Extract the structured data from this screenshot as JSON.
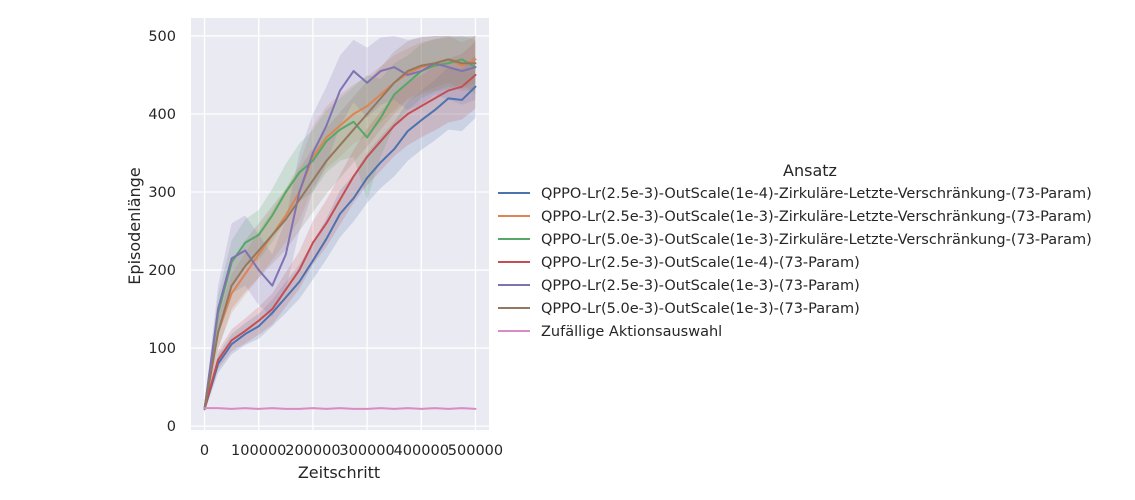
{
  "chart_data": {
    "type": "line",
    "title": "",
    "xlabel": "Zeitschritt",
    "ylabel": "Episodenlänge",
    "xlim": [
      -25000,
      525000
    ],
    "ylim": [
      -5,
      523
    ],
    "xticks": [
      0,
      100000,
      200000,
      300000,
      400000,
      500000
    ],
    "yticks": [
      0,
      100,
      200,
      300,
      400,
      500
    ],
    "grid": true,
    "background": "#eaeaf2",
    "legend": {
      "title": "Ansatz",
      "placement": "right"
    },
    "series": [
      {
        "name": "QPPO-Lr(2.5e-3)-OutScale(1e-4)-Zirkuläre-Letzte-Verschränkung-(73-Param)",
        "color": "#4c72b0",
        "x": [
          0,
          25000,
          50000,
          75000,
          100000,
          125000,
          150000,
          175000,
          200000,
          225000,
          250000,
          275000,
          300000,
          325000,
          350000,
          375000,
          400000,
          425000,
          450000,
          475000,
          500000
        ],
        "y": [
          22,
          80,
          105,
          118,
          128,
          145,
          165,
          185,
          212,
          240,
          272,
          292,
          318,
          338,
          355,
          378,
          392,
          405,
          420,
          418,
          435
        ],
        "band": [
          [
            18,
            26
          ],
          [
            68,
            92
          ],
          [
            92,
            118
          ],
          [
            104,
            132
          ],
          [
            112,
            144
          ],
          [
            128,
            162
          ],
          [
            145,
            185
          ],
          [
            163,
            207
          ],
          [
            188,
            236
          ],
          [
            214,
            266
          ],
          [
            242,
            302
          ],
          [
            262,
            322
          ],
          [
            286,
            350
          ],
          [
            305,
            371
          ],
          [
            320,
            390
          ],
          [
            340,
            416
          ],
          [
            354,
            430
          ],
          [
            366,
            444
          ],
          [
            380,
            460
          ],
          [
            378,
            458
          ],
          [
            395,
            475
          ]
        ]
      },
      {
        "name": "QPPO-Lr(2.5e-3)-OutScale(1e-3)-Zirkuläre-Letzte-Verschränkung-(73-Param)",
        "color": "#dd8452",
        "x": [
          0,
          25000,
          50000,
          75000,
          100000,
          125000,
          150000,
          175000,
          200000,
          225000,
          250000,
          275000,
          300000,
          325000,
          350000,
          375000,
          400000,
          425000,
          450000,
          475000,
          500000
        ],
        "y": [
          22,
          120,
          170,
          195,
          220,
          245,
          270,
          300,
          345,
          370,
          385,
          400,
          410,
          425,
          440,
          452,
          460,
          465,
          470,
          462,
          470
        ],
        "band": [
          [
            18,
            26
          ],
          [
            100,
            140
          ],
          [
            145,
            195
          ],
          [
            168,
            222
          ],
          [
            190,
            250
          ],
          [
            213,
            277
          ],
          [
            236,
            304
          ],
          [
            264,
            336
          ],
          [
            305,
            385
          ],
          [
            330,
            410
          ],
          [
            345,
            425
          ],
          [
            362,
            438
          ],
          [
            372,
            448
          ],
          [
            389,
            461
          ],
          [
            405,
            475
          ],
          [
            420,
            484
          ],
          [
            428,
            492
          ],
          [
            434,
            496
          ],
          [
            440,
            500
          ],
          [
            432,
            492
          ],
          [
            440,
            500
          ]
        ]
      },
      {
        "name": "QPPO-Lr(5.0e-3)-OutScale(1e-3)-Zirkuläre-Letzte-Verschränkung-(73-Param)",
        "color": "#55a868",
        "x": [
          0,
          25000,
          50000,
          75000,
          100000,
          125000,
          150000,
          175000,
          200000,
          225000,
          250000,
          275000,
          300000,
          325000,
          350000,
          375000,
          400000,
          425000,
          450000,
          475000,
          500000
        ],
        "y": [
          22,
          145,
          210,
          235,
          245,
          270,
          300,
          325,
          340,
          365,
          380,
          390,
          370,
          395,
          425,
          440,
          455,
          462,
          465,
          470,
          460
        ],
        "band": [
          [
            18,
            26
          ],
          [
            122,
            168
          ],
          [
            182,
            238
          ],
          [
            205,
            265
          ],
          [
            213,
            277
          ],
          [
            236,
            304
          ],
          [
            264,
            336
          ],
          [
            288,
            362
          ],
          [
            300,
            380
          ],
          [
            325,
            405
          ],
          [
            340,
            420
          ],
          [
            345,
            435
          ],
          [
            290,
            450
          ],
          [
            345,
            445
          ],
          [
            385,
            465
          ],
          [
            405,
            475
          ],
          [
            420,
            490
          ],
          [
            428,
            496
          ],
          [
            432,
            498
          ],
          [
            438,
            500
          ],
          [
            425,
            495
          ]
        ]
      },
      {
        "name": "QPPO-Lr(2.5e-3)-OutScale(1e-4)-(73-Param)",
        "color": "#c44e52",
        "x": [
          0,
          25000,
          50000,
          75000,
          100000,
          125000,
          150000,
          175000,
          200000,
          225000,
          250000,
          275000,
          300000,
          325000,
          350000,
          375000,
          400000,
          425000,
          450000,
          475000,
          500000
        ],
        "y": [
          22,
          85,
          110,
          122,
          135,
          150,
          175,
          200,
          235,
          260,
          290,
          320,
          345,
          365,
          385,
          400,
          410,
          420,
          430,
          435,
          450
        ],
        "band": [
          [
            18,
            26
          ],
          [
            73,
            97
          ],
          [
            96,
            124
          ],
          [
            106,
            138
          ],
          [
            117,
            153
          ],
          [
            130,
            170
          ],
          [
            153,
            197
          ],
          [
            176,
            224
          ],
          [
            207,
            263
          ],
          [
            230,
            290
          ],
          [
            258,
            322
          ],
          [
            286,
            354
          ],
          [
            309,
            381
          ],
          [
            327,
            403
          ],
          [
            346,
            424
          ],
          [
            360,
            440
          ],
          [
            370,
            450
          ],
          [
            379,
            461
          ],
          [
            389,
            471
          ],
          [
            393,
            477
          ],
          [
            407,
            493
          ]
        ]
      },
      {
        "name": "QPPO-Lr(2.5e-3)-OutScale(1e-3)-(73-Param)",
        "color": "#8172b3",
        "x": [
          0,
          25000,
          50000,
          75000,
          100000,
          125000,
          150000,
          175000,
          200000,
          225000,
          250000,
          275000,
          300000,
          325000,
          350000,
          375000,
          400000,
          425000,
          450000,
          475000,
          500000
        ],
        "y": [
          22,
          150,
          215,
          225,
          200,
          180,
          220,
          300,
          350,
          385,
          430,
          455,
          440,
          455,
          460,
          450,
          455,
          465,
          460,
          455,
          460
        ],
        "band": [
          [
            18,
            26
          ],
          [
            120,
            180
          ],
          [
            170,
            260
          ],
          [
            180,
            270
          ],
          [
            155,
            245
          ],
          [
            140,
            220
          ],
          [
            175,
            265
          ],
          [
            250,
            350
          ],
          [
            300,
            400
          ],
          [
            335,
            435
          ],
          [
            385,
            475
          ],
          [
            415,
            495
          ],
          [
            395,
            485
          ],
          [
            412,
            498
          ],
          [
            418,
            500
          ],
          [
            405,
            495
          ],
          [
            412,
            498
          ],
          [
            425,
            500
          ],
          [
            418,
            500
          ],
          [
            412,
            498
          ],
          [
            418,
            500
          ]
        ]
      },
      {
        "name": "QPPO-Lr(5.0e-3)-OutScale(1e-3)-(73-Param)",
        "color": "#937860",
        "x": [
          0,
          25000,
          50000,
          75000,
          100000,
          125000,
          150000,
          175000,
          200000,
          225000,
          250000,
          275000,
          300000,
          325000,
          350000,
          375000,
          400000,
          425000,
          450000,
          475000,
          500000
        ],
        "y": [
          22,
          120,
          180,
          205,
          225,
          245,
          265,
          290,
          315,
          340,
          360,
          380,
          400,
          420,
          440,
          455,
          462,
          465,
          470,
          465,
          465
        ],
        "band": [
          [
            18,
            26
          ],
          [
            98,
            142
          ],
          [
            150,
            210
          ],
          [
            172,
            238
          ],
          [
            190,
            260
          ],
          [
            208,
            282
          ],
          [
            226,
            304
          ],
          [
            250,
            330
          ],
          [
            274,
            356
          ],
          [
            298,
            382
          ],
          [
            318,
            402
          ],
          [
            338,
            422
          ],
          [
            358,
            442
          ],
          [
            380,
            460
          ],
          [
            400,
            480
          ],
          [
            417,
            493
          ],
          [
            425,
            499
          ],
          [
            430,
            500
          ],
          [
            435,
            500
          ],
          [
            430,
            500
          ],
          [
            430,
            500
          ]
        ]
      },
      {
        "name": "Zufällige Aktionsauswahl",
        "color": "#da8bc3",
        "x": [
          0,
          25000,
          50000,
          75000,
          100000,
          125000,
          150000,
          175000,
          200000,
          225000,
          250000,
          275000,
          300000,
          325000,
          350000,
          375000,
          400000,
          425000,
          450000,
          475000,
          500000
        ],
        "y": [
          23,
          23,
          22,
          23,
          22,
          23,
          22,
          22,
          23,
          22,
          23,
          22,
          22,
          23,
          22,
          23,
          22,
          23,
          22,
          23,
          22
        ],
        "band": [
          [
            22,
            24
          ],
          [
            22,
            24
          ],
          [
            21,
            23
          ],
          [
            22,
            24
          ],
          [
            21,
            23
          ],
          [
            22,
            24
          ],
          [
            21,
            23
          ],
          [
            21,
            23
          ],
          [
            22,
            24
          ],
          [
            21,
            23
          ],
          [
            22,
            24
          ],
          [
            21,
            23
          ],
          [
            21,
            23
          ],
          [
            22,
            24
          ],
          [
            21,
            23
          ],
          [
            22,
            24
          ],
          [
            21,
            23
          ],
          [
            22,
            24
          ],
          [
            21,
            23
          ],
          [
            22,
            24
          ],
          [
            21,
            23
          ]
        ]
      }
    ]
  }
}
